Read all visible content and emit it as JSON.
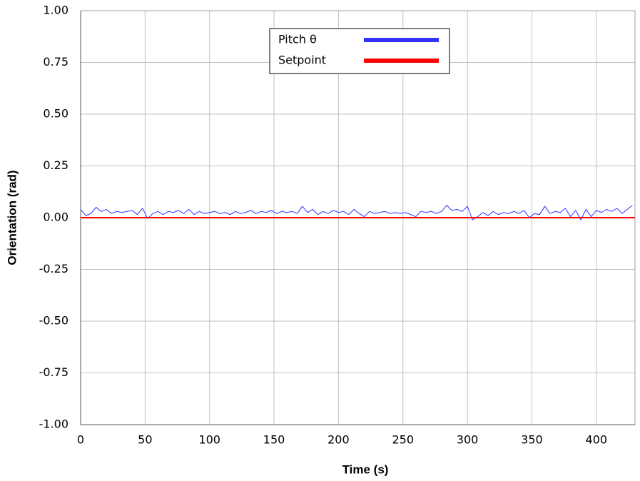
{
  "chart_data": {
    "type": "line",
    "xlabel": "Time (s)",
    "ylabel": "Orientation (rad)",
    "xlim": [
      0,
      430
    ],
    "ylim": [
      -1,
      1
    ],
    "xticks": [
      0,
      50,
      100,
      150,
      200,
      250,
      300,
      350,
      400
    ],
    "yticks": [
      {
        "value": 1,
        "label": "1.00"
      },
      {
        "value": 0.75,
        "label": "0.75"
      },
      {
        "value": 0.5,
        "label": "0.50"
      },
      {
        "value": 0.25,
        "label": "0.25"
      },
      {
        "value": 0,
        "label": "0.00"
      },
      {
        "value": -0.25,
        "label": "-0.25"
      },
      {
        "value": -0.5,
        "label": "-0.50"
      },
      {
        "value": -0.75,
        "label": "-0.75"
      },
      {
        "value": -1,
        "label": "-1.00"
      }
    ],
    "grid": true,
    "legend": "top",
    "series": [
      {
        "name": "Pitch θ",
        "color": "#3333ff",
        "x": [
          0,
          4,
          8,
          12,
          16,
          20,
          24,
          28,
          32,
          36,
          40,
          44,
          48,
          52,
          56,
          60,
          64,
          68,
          72,
          76,
          80,
          84,
          88,
          92,
          96,
          100,
          104,
          108,
          112,
          116,
          120,
          124,
          128,
          132,
          136,
          140,
          144,
          148,
          152,
          156,
          160,
          164,
          168,
          172,
          176,
          180,
          184,
          188,
          192,
          196,
          200,
          204,
          208,
          212,
          216,
          220,
          224,
          228,
          232,
          236,
          240,
          244,
          248,
          252,
          256,
          260,
          264,
          268,
          272,
          276,
          280,
          284,
          288,
          292,
          296,
          300,
          304,
          308,
          312,
          316,
          320,
          324,
          328,
          332,
          336,
          340,
          344,
          348,
          352,
          356,
          360,
          364,
          368,
          372,
          376,
          380,
          384,
          388,
          392,
          396,
          400,
          404,
          408,
          412,
          416,
          420,
          424,
          428
        ],
        "values": [
          0.04,
          0.01,
          0.02,
          0.05,
          0.03,
          0.04,
          0.02,
          0.03,
          0.025,
          0.03,
          0.035,
          0.015,
          0.045,
          -0.005,
          0.02,
          0.03,
          0.015,
          0.03,
          0.025,
          0.035,
          0.02,
          0.04,
          0.015,
          0.03,
          0.02,
          0.025,
          0.03,
          0.02,
          0.025,
          0.015,
          0.03,
          0.02,
          0.025,
          0.035,
          0.02,
          0.03,
          0.025,
          0.035,
          0.02,
          0.03,
          0.025,
          0.03,
          0.02,
          0.055,
          0.025,
          0.04,
          0.015,
          0.03,
          0.02,
          0.035,
          0.025,
          0.03,
          0.015,
          0.04,
          0.02,
          0.005,
          0.03,
          0.02,
          0.025,
          0.03,
          0.02,
          0.025,
          0.02,
          0.025,
          0.015,
          0.005,
          0.03,
          0.025,
          0.03,
          0.02,
          0.03,
          0.06,
          0.035,
          0.04,
          0.03,
          0.055,
          -0.01,
          0.005,
          0.025,
          0.01,
          0.03,
          0.015,
          0.025,
          0.02,
          0.03,
          0.02,
          0.035,
          0.0,
          0.02,
          0.015,
          0.055,
          0.02,
          0.03,
          0.025,
          0.045,
          0.005,
          0.035,
          -0.01,
          0.04,
          0.005,
          0.035,
          0.025,
          0.04,
          0.03,
          0.045,
          0.02,
          0.04,
          0.06
        ]
      },
      {
        "name": "Setpoint",
        "color": "#ff0000",
        "x": [
          0,
          430
        ],
        "values": [
          0,
          0
        ]
      }
    ]
  }
}
